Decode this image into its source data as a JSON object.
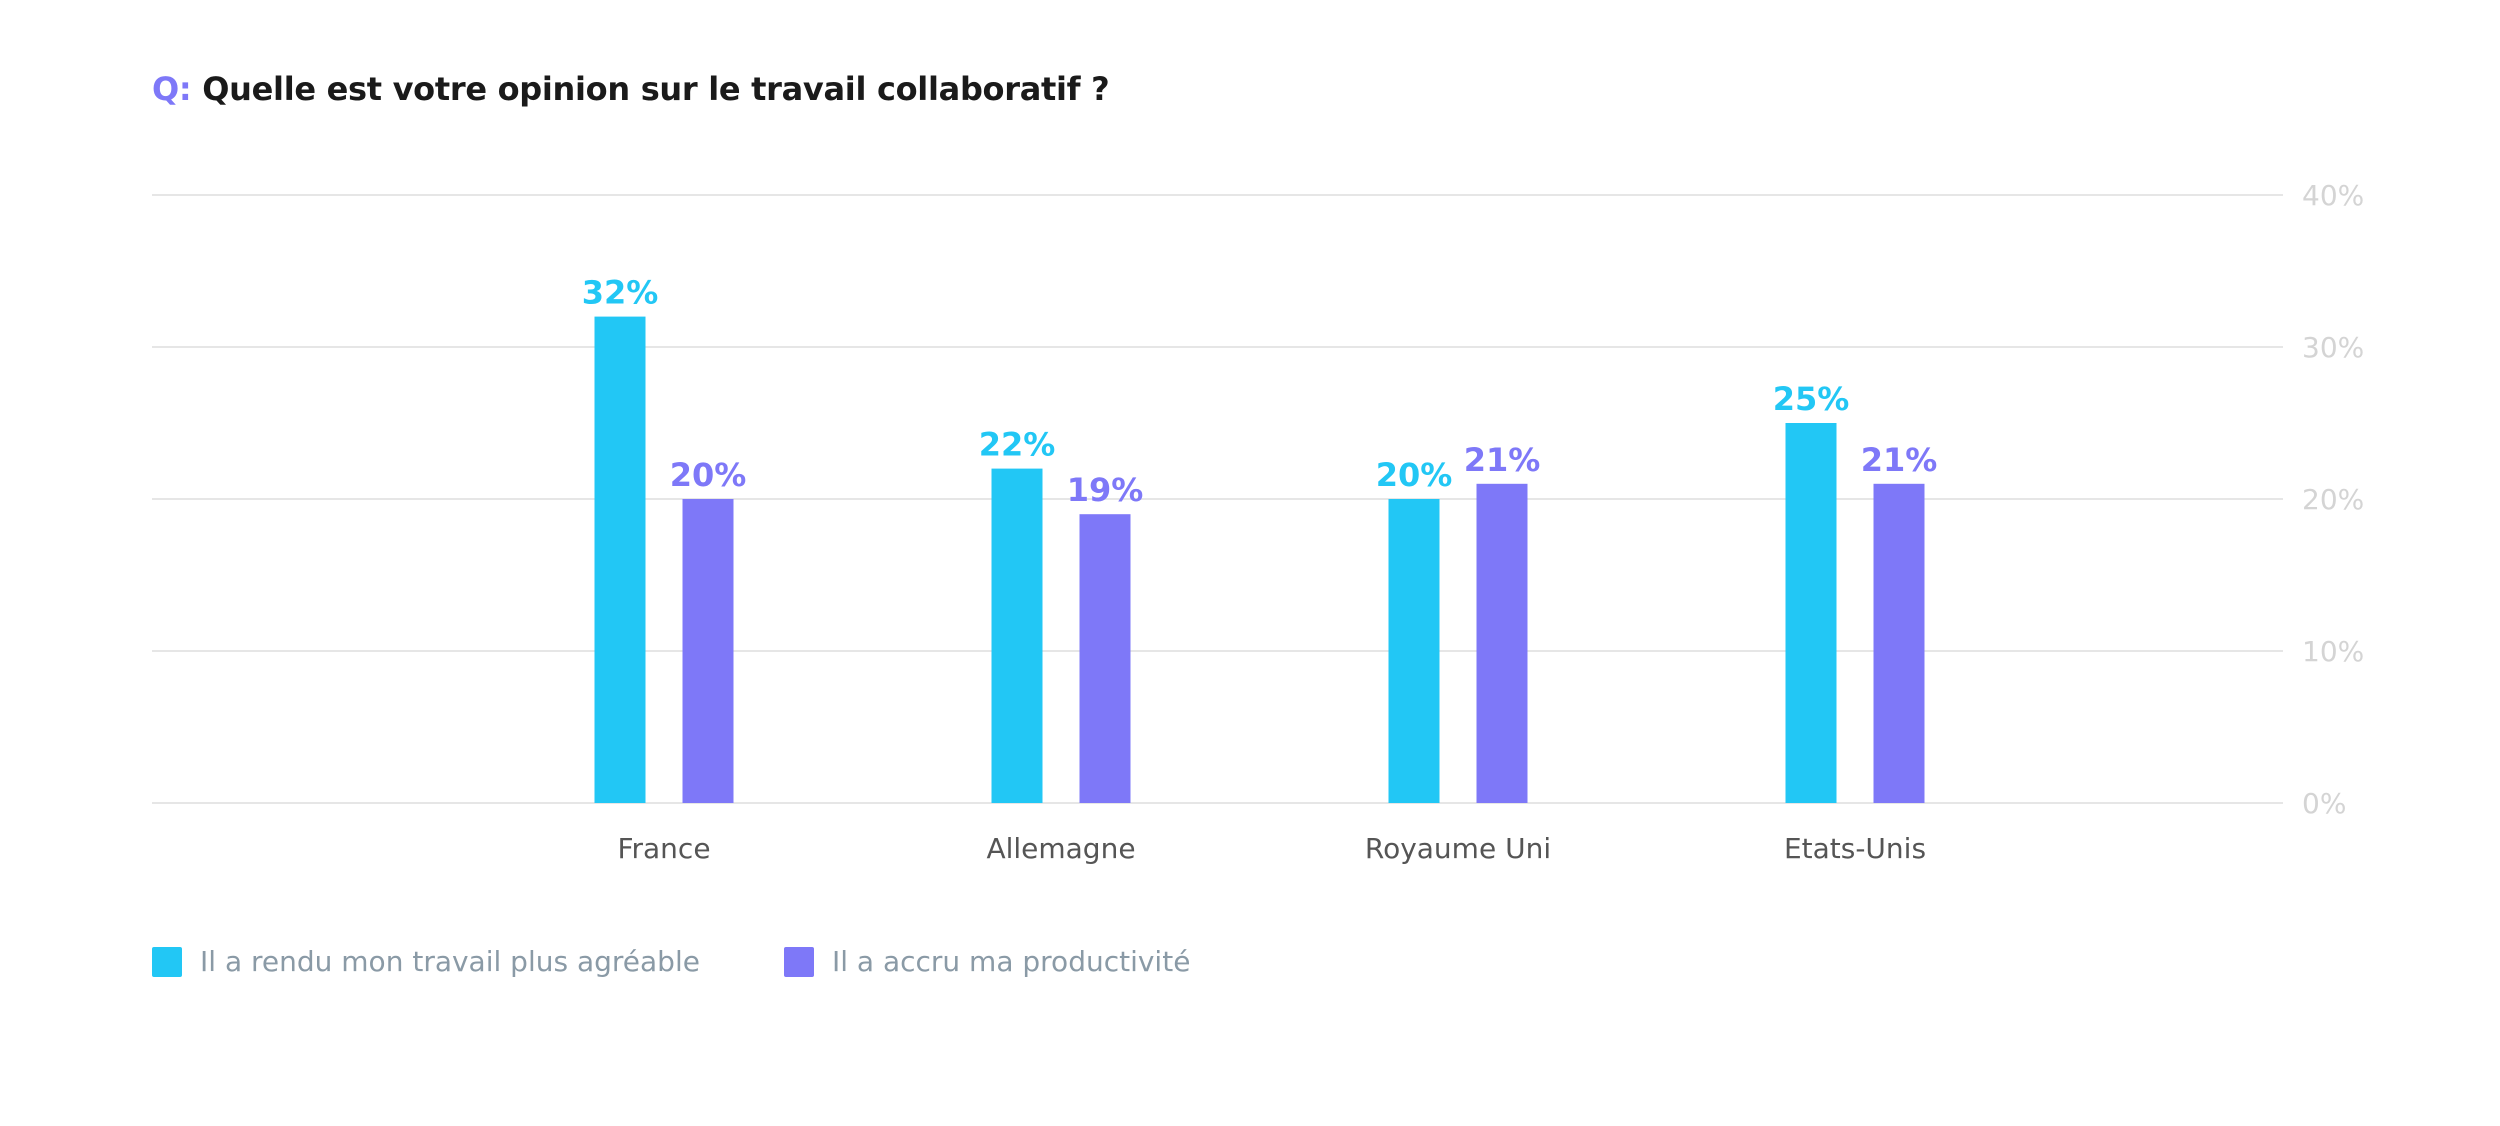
{
  "question": {
    "prefix": "Q:",
    "text": "Quelle est votre opinion sur le travail collaboratif ?"
  },
  "colors": {
    "series_1": "#22c7f5",
    "series_2": "#7e78f8",
    "grid": "#dddddd",
    "axis_tick": "#d4d4d4",
    "category_label": "#555555",
    "legend_text": "#8a9aa6"
  },
  "chart_data": {
    "type": "bar",
    "categories": [
      "France",
      "Allemagne",
      "Royaume Uni",
      "Etats-Unis"
    ],
    "series": [
      {
        "name": "Il a rendu mon travail plus agréable",
        "values": [
          32,
          22,
          20,
          25
        ],
        "labels": [
          "32%",
          "22%",
          "20%",
          "25%"
        ]
      },
      {
        "name": "Il a accru ma productivité",
        "values": [
          20,
          19,
          21,
          21
        ],
        "labels": [
          "20%",
          "19%",
          "21%",
          "21%"
        ]
      }
    ],
    "ylim": [
      0,
      40
    ],
    "yticks": [
      0,
      10,
      20,
      30,
      40
    ],
    "ytick_labels": [
      "0%",
      "10%",
      "20%",
      "30%",
      "40%"
    ],
    "y_axis_position": "right",
    "grid": true,
    "legend_position": "bottom-left"
  }
}
